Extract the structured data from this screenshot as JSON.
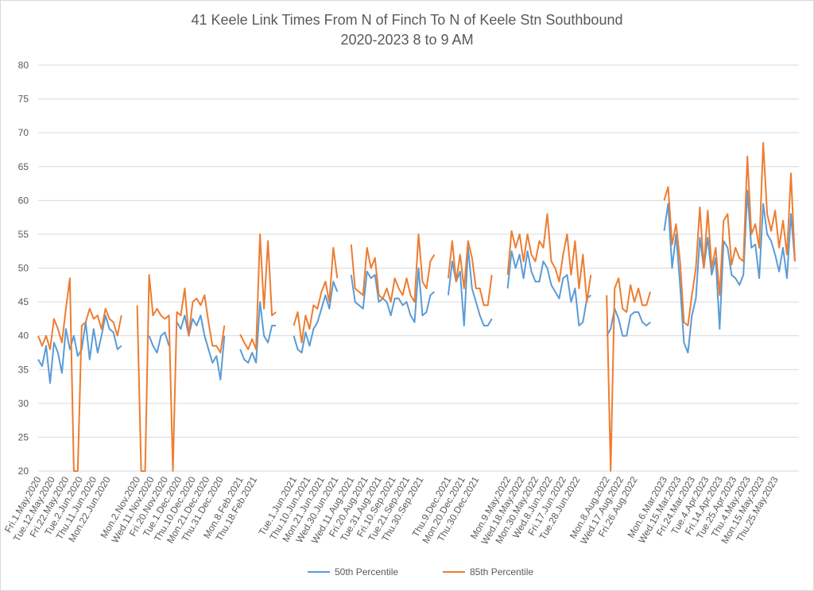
{
  "chart_data": {
    "type": "line",
    "title": "41 Keele Link Times From N of Finch To N of Keele Stn Southbound",
    "subtitle": "2020-2023 8 to 9 AM",
    "xlabel": "",
    "ylabel": "",
    "ylim": [
      20,
      80
    ],
    "yticks": [
      20,
      25,
      30,
      35,
      40,
      45,
      50,
      55,
      60,
      65,
      70,
      75,
      80
    ],
    "grid": true,
    "legend_position": "bottom",
    "x_index_range": [
      0,
      382
    ],
    "x_tick_labels": [
      {
        "i": 0,
        "label": "Fri.1.May.2020"
      },
      {
        "i": 7,
        "label": "Tue.12.May.2020"
      },
      {
        "i": 14,
        "label": "Fri.22.May.2020"
      },
      {
        "i": 21,
        "label": "Tue.2.Jun.2020"
      },
      {
        "i": 28,
        "label": "Thu.11.Jun.2020"
      },
      {
        "i": 35,
        "label": "Mon.22.Jun.2020"
      },
      {
        "i": 50,
        "label": "Mon.2.Nov.2020"
      },
      {
        "i": 57,
        "label": "Wed.11.Nov.2020"
      },
      {
        "i": 64,
        "label": "Fri.20.Nov.2020"
      },
      {
        "i": 71,
        "label": "Tue.1.Dec.2020"
      },
      {
        "i": 78,
        "label": "Thu.10.Dec.2020"
      },
      {
        "i": 85,
        "label": "Mon.21.Dec.2020"
      },
      {
        "i": 92,
        "label": "Thu.31.Dec.2020"
      },
      {
        "i": 102,
        "label": "Mon.8.Feb.2021"
      },
      {
        "i": 109,
        "label": "Thu.18.Feb.2021"
      },
      {
        "i": 129,
        "label": "Tue.1.Jun.2021"
      },
      {
        "i": 136,
        "label": "Thu.10.Jun.2021"
      },
      {
        "i": 143,
        "label": "Mon.21.Jun.2021"
      },
      {
        "i": 150,
        "label": "Wed.30.Jun.2021"
      },
      {
        "i": 158,
        "label": "Wed.11.Aug.2021"
      },
      {
        "i": 165,
        "label": "Fri.20.Aug.2021"
      },
      {
        "i": 172,
        "label": "Tue.31.Aug.2021"
      },
      {
        "i": 179,
        "label": "Fri.10.Sep.2021"
      },
      {
        "i": 186,
        "label": "Tue.21.Sep.2021"
      },
      {
        "i": 193,
        "label": "Thu.30.Sep.2021"
      },
      {
        "i": 207,
        "label": "Thu.9.Dec.2021"
      },
      {
        "i": 214,
        "label": "Mon.20.Dec.2021"
      },
      {
        "i": 221,
        "label": "Thu.30.Dec.2021"
      },
      {
        "i": 237,
        "label": "Mon.9.May.2022"
      },
      {
        "i": 244,
        "label": "Wed.18.May.2022"
      },
      {
        "i": 251,
        "label": "Mon.30.May.2022"
      },
      {
        "i": 258,
        "label": "Wed.8.Jun.2022"
      },
      {
        "i": 265,
        "label": "Fri.17.Jun.2022"
      },
      {
        "i": 272,
        "label": "Tue.28.Jun.2022"
      },
      {
        "i": 287,
        "label": "Mon.8.Aug.2022"
      },
      {
        "i": 294,
        "label": "Wed.17.Aug.2022"
      },
      {
        "i": 301,
        "label": "Fri.26.Aug.2022"
      },
      {
        "i": 316,
        "label": "Mon.6.Mar.2023"
      },
      {
        "i": 323,
        "label": "Wed.15.Mar.2023"
      },
      {
        "i": 330,
        "label": "Fri.24.Mar.2023"
      },
      {
        "i": 337,
        "label": "Tue.4.Apr.2023"
      },
      {
        "i": 344,
        "label": "Fri.14.Apr.2023"
      },
      {
        "i": 351,
        "label": "Tue.25.Apr.2023"
      },
      {
        "i": 358,
        "label": "Thu.4.May.2023"
      },
      {
        "i": 365,
        "label": "Mon.15.May.2023"
      },
      {
        "i": 372,
        "label": "Thu.25.May.2023"
      }
    ],
    "segments": [
      {
        "start": 0,
        "step": 2,
        "p50": [
          36.5,
          35.5,
          38.5,
          33,
          39,
          37.5,
          34.5,
          41,
          38,
          40,
          37,
          38,
          42,
          36.5,
          41,
          37.5,
          40,
          43,
          41,
          40.5,
          38,
          38.5
        ],
        "p85": [
          40,
          38.5,
          40,
          38,
          42.5,
          41,
          39,
          44,
          48.5,
          20,
          20,
          41.5,
          42,
          44,
          42.5,
          43,
          41,
          44,
          42.5,
          42,
          40,
          43
        ]
      },
      {
        "start": 50,
        "step": 2,
        "p50": [
          null,
          null,
          null,
          40,
          38.5,
          37.5,
          40,
          40.5,
          38.5,
          null,
          42,
          41,
          43,
          40,
          42.5,
          41.5,
          43,
          40,
          38,
          36,
          37,
          33.5,
          40
        ],
        "p85": [
          44.5,
          20,
          20,
          49,
          43,
          44,
          43,
          42.5,
          43,
          20,
          43.5,
          43,
          47,
          40,
          45,
          45.5,
          44.5,
          46,
          42,
          38.5,
          38.5,
          37.5,
          41.5
        ]
      },
      {
        "start": 102,
        "step": 2,
        "p50": [
          38,
          36.5,
          36,
          37.5,
          36,
          45,
          40,
          39,
          41.5,
          41.5
        ],
        "p85": [
          40.2,
          39,
          38,
          39.5,
          38,
          55,
          44,
          54,
          43,
          43.5
        ]
      },
      {
        "start": 129,
        "step": 2,
        "p50": [
          40,
          38,
          37.5,
          40.5,
          38.5,
          41,
          42,
          44,
          46,
          44,
          48,
          46.5
        ],
        "p85": [
          41.5,
          43.5,
          39,
          43,
          41,
          44.5,
          44,
          46.5,
          48,
          45,
          53,
          48.5
        ]
      },
      {
        "start": 158,
        "step": 2,
        "p50": [
          49,
          45,
          44.5,
          44,
          49.5,
          48.5,
          49,
          45,
          45.5,
          45,
          43,
          45.5,
          45.5,
          44.5,
          45,
          43,
          42,
          50,
          43,
          43.5,
          46,
          46.5
        ],
        "p85": [
          53.5,
          47,
          46.5,
          46,
          53,
          50,
          51.5,
          46,
          45.5,
          47,
          45,
          48.5,
          47,
          46,
          48.5,
          46,
          45,
          55,
          48,
          47,
          51,
          52
        ]
      },
      {
        "start": 207,
        "step": 2,
        "p50": [
          46,
          51,
          48,
          49.5,
          41.5,
          53,
          47,
          45,
          43,
          41.5,
          41.5,
          42.5
        ],
        "p85": [
          48.5,
          54,
          48,
          52,
          47,
          54,
          51.5,
          47,
          47,
          44.5,
          44.5,
          49
        ]
      },
      {
        "start": 237,
        "step": 2,
        "p50": [
          47,
          52.5,
          50,
          52,
          48.5,
          52.5,
          49.5,
          48,
          48,
          51,
          50,
          47.5,
          46.5,
          45.5,
          48.5,
          49,
          45,
          47,
          41.5,
          42,
          45.5,
          46
        ],
        "p85": [
          49,
          55.5,
          53,
          55,
          51,
          55,
          52,
          51,
          54,
          53,
          58,
          51,
          50,
          48,
          52,
          55,
          49,
          54,
          47,
          52,
          45,
          49
        ]
      },
      {
        "start": 287,
        "step": 2,
        "p50": [
          40,
          41,
          44,
          42.5,
          40,
          40,
          43,
          43.5,
          43.5,
          42,
          41.5,
          42
        ],
        "p85": [
          46,
          20,
          47,
          48.5,
          44,
          43.5,
          47.5,
          45,
          47,
          44.5,
          44.5,
          46.5
        ]
      },
      {
        "start": 316,
        "step": 2,
        "p50": [
          55.5,
          59.5,
          50,
          55,
          47.5,
          39,
          37.5,
          43,
          45.5,
          54.5,
          50,
          54.5,
          49,
          51.5,
          41,
          54,
          53,
          49,
          48.5,
          47.5,
          49,
          61.5,
          53,
          53.5,
          48.5,
          59.5,
          55,
          54,
          52,
          49.5,
          53,
          48.5,
          58,
          51
        ],
        "p85": [
          60,
          62,
          53.5,
          56.5,
          51,
          42,
          41.5,
          46,
          50,
          59,
          50,
          58.5,
          50,
          53,
          46,
          57,
          58,
          50.5,
          53,
          51.5,
          51,
          66.5,
          55,
          56.5,
          53,
          68.5,
          58,
          55.5,
          58.5,
          53,
          57,
          52,
          64,
          51
        ]
      }
    ],
    "series": [
      {
        "name": "50th Percentile",
        "key": "p50",
        "color": "#5b9bd5"
      },
      {
        "name": "85th Percentile",
        "key": "p85",
        "color": "#ed7d31"
      }
    ]
  }
}
